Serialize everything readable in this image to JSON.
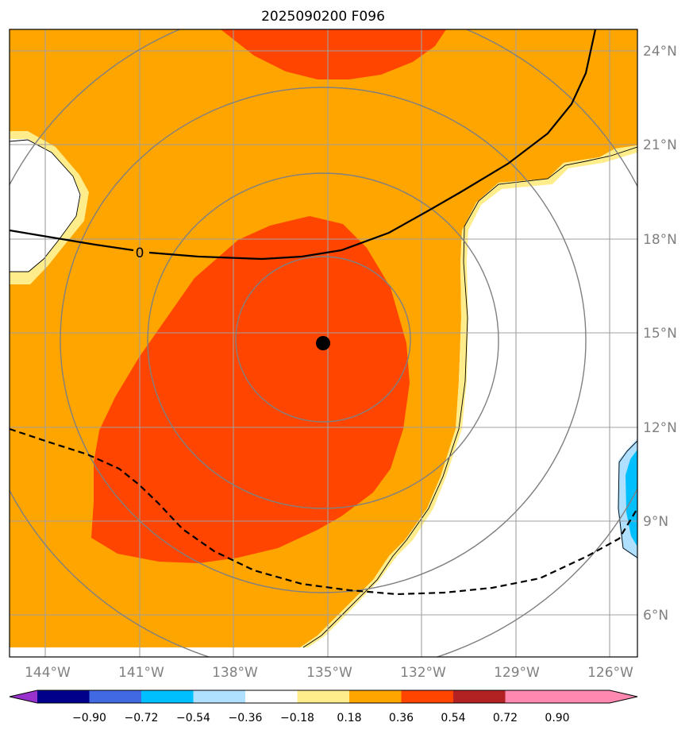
{
  "title": "2025090200 F096",
  "map": {
    "lon_ticks": [
      "144°W",
      "141°W",
      "138°W",
      "135°W",
      "132°W",
      "129°W",
      "126°W"
    ],
    "lat_ticks": [
      "24°N",
      "21°N",
      "18°N",
      "15°N",
      "12°N",
      "9°N",
      "6°N"
    ],
    "lon_range": [
      -145.1,
      -125.1
    ],
    "lat_range": [
      4.9,
      24.6
    ],
    "gridlines": true,
    "center_marker": {
      "lon": -135.0,
      "lat": 14.7
    },
    "range_rings": 4,
    "contour_label": "0"
  },
  "colorbar": {
    "tick_labels": [
      "−0.90",
      "−0.72",
      "−0.54",
      "−0.36",
      "−0.18",
      "0.18",
      "0.36",
      "0.54",
      "0.72",
      "0.90"
    ],
    "colors": [
      "#9932cc",
      "#00008b",
      "#4169e1",
      "#00bfff",
      "#b0e0ff",
      "#ffffff",
      "#ffec8b",
      "#ffa500",
      "#ff4500",
      "#b22222",
      "#ff88b0"
    ]
  }
}
